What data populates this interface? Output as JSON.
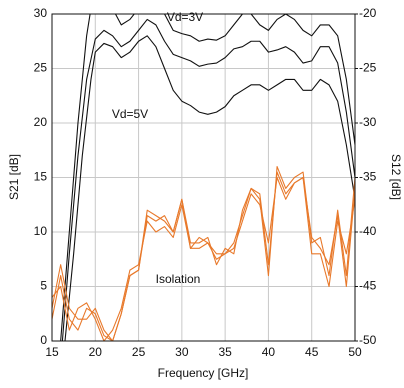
{
  "chart_data": {
    "type": "line",
    "x_label": "Frequency [GHz]",
    "y_label": "S21 [dB]",
    "y2_label": "S12 [dB]",
    "annotations": [
      "Vd=3V",
      "Vd=5V",
      "Isolation"
    ],
    "xlim": [
      15,
      50
    ],
    "xticks": [
      15,
      20,
      25,
      30,
      35,
      40,
      45,
      50
    ],
    "ylim": [
      0,
      30
    ],
    "yticks": [
      0,
      5,
      10,
      15,
      20,
      25,
      30
    ],
    "y2lim": [
      -50,
      -20
    ],
    "y2ticks": [
      -50,
      -45,
      -40,
      -35,
      -30,
      -25,
      -20
    ],
    "grid": true,
    "series": [
      {
        "color": "#111111",
        "x": [
          16,
          17,
          18,
          19,
          19.5,
          20,
          21,
          22,
          23,
          24,
          25,
          26,
          27,
          28,
          29,
          30,
          31,
          32,
          33,
          34,
          35,
          36,
          37,
          38,
          39,
          40,
          41,
          42,
          43,
          44,
          45,
          46,
          47,
          48,
          49,
          50
        ],
        "values": [
          0,
          10,
          20,
          28,
          30.5,
          31,
          31,
          30.5,
          29,
          29.5,
          30.5,
          31,
          31,
          30,
          28.5,
          28.2,
          28,
          27.5,
          27.7,
          27.6,
          28,
          29,
          30,
          30,
          29,
          28.5,
          29.5,
          30,
          29.5,
          28.5,
          28,
          29,
          29,
          28,
          24,
          18
        ]
      },
      {
        "color": "#111111",
        "x": [
          16.2,
          17,
          18,
          19,
          20,
          21,
          22,
          23,
          24,
          25,
          26,
          27,
          28,
          29,
          30,
          31,
          32,
          33,
          34,
          35,
          36,
          37,
          38,
          39,
          40,
          41,
          42,
          43,
          44,
          45,
          46,
          47,
          48,
          49,
          50
        ],
        "values": [
          0,
          8,
          17,
          24,
          27.7,
          28.5,
          28,
          27,
          27.5,
          28.5,
          29.5,
          29,
          27.5,
          26.3,
          26,
          25.7,
          25.2,
          25.4,
          25.5,
          26,
          26.8,
          27,
          27.5,
          27.5,
          26.5,
          26.7,
          27,
          26.5,
          25.5,
          25.7,
          27,
          27,
          25.5,
          21,
          15
        ]
      },
      {
        "color": "#111111",
        "x": [
          16.5,
          17.5,
          18.5,
          19.5,
          20,
          21,
          22,
          23,
          24,
          25,
          26,
          27,
          28,
          29,
          30,
          31,
          32,
          33,
          34,
          35,
          36,
          37,
          38,
          39,
          40,
          41,
          42,
          43,
          44,
          45,
          46,
          47,
          48,
          49,
          50
        ],
        "values": [
          0,
          8,
          17,
          24,
          26.5,
          27.3,
          27,
          26,
          26.5,
          27.5,
          28,
          27,
          25,
          23,
          22,
          21.6,
          21,
          20.8,
          21,
          21.5,
          22.5,
          23,
          23.5,
          23.5,
          23,
          23.5,
          24,
          24,
          23,
          23,
          24,
          23.5,
          22,
          18,
          13
        ]
      },
      {
        "color": "#e8792b",
        "axis": "y2",
        "x": [
          15,
          16,
          17,
          18,
          19,
          20,
          21,
          22,
          23,
          24,
          25,
          26,
          27,
          28,
          29,
          30,
          31,
          32,
          33,
          34,
          35,
          36,
          37,
          38,
          39,
          40,
          41,
          42,
          43,
          44,
          45,
          46,
          47,
          48,
          49,
          50
        ],
        "values": [
          -48,
          -44,
          -48,
          -49,
          -47,
          -47.5,
          -49.5,
          -50,
          -47.5,
          -44,
          -43.5,
          -38.5,
          -39,
          -38.5,
          -40,
          -37,
          -41,
          -41,
          -40.5,
          -43,
          -41.5,
          -42,
          -38,
          -36,
          -37,
          -44,
          -34,
          -36,
          -35,
          -34.5,
          -41,
          -40.5,
          -44,
          -38,
          -44,
          -35
        ]
      },
      {
        "color": "#e8792b",
        "axis": "y2",
        "x": [
          15,
          16,
          17,
          18,
          19,
          20,
          21,
          22,
          23,
          24,
          25,
          26,
          27,
          28,
          29,
          30,
          31,
          32,
          33,
          34,
          35,
          36,
          37,
          38,
          39,
          40,
          41,
          42,
          43,
          44,
          45,
          46,
          47,
          48,
          49,
          50
        ],
        "values": [
          -46,
          -45,
          -49,
          -47,
          -46.5,
          -48,
          -50,
          -49,
          -47,
          -43.5,
          -43,
          -39,
          -40,
          -39.5,
          -40.5,
          -37.5,
          -41.5,
          -41.5,
          -41,
          -42,
          -42,
          -41.5,
          -39,
          -36.5,
          -37.5,
          -41,
          -35,
          -37,
          -35.5,
          -35,
          -42,
          -42,
          -45,
          -39,
          -42,
          -37
        ]
      },
      {
        "color": "#e8792b",
        "axis": "y2",
        "x": [
          15,
          16,
          17,
          18,
          19,
          20,
          21,
          22,
          23,
          24,
          25,
          26,
          27,
          28,
          29,
          30,
          31,
          32,
          33,
          34,
          35,
          36,
          37,
          38,
          39,
          40,
          41,
          42,
          43,
          44,
          45,
          46,
          47,
          48,
          49,
          50
        ],
        "values": [
          -47,
          -43,
          -47,
          -48,
          -48,
          -47,
          -49,
          -50,
          -47.5,
          -44,
          -43.5,
          -38,
          -38.5,
          -39,
          -40,
          -37,
          -41.5,
          -40.5,
          -41,
          -42.5,
          -42,
          -41,
          -38.5,
          -36,
          -36.5,
          -43,
          -34.5,
          -36.5,
          -35.5,
          -35,
          -40.5,
          -41.5,
          -43,
          -38.5,
          -45,
          -36
        ]
      }
    ]
  }
}
